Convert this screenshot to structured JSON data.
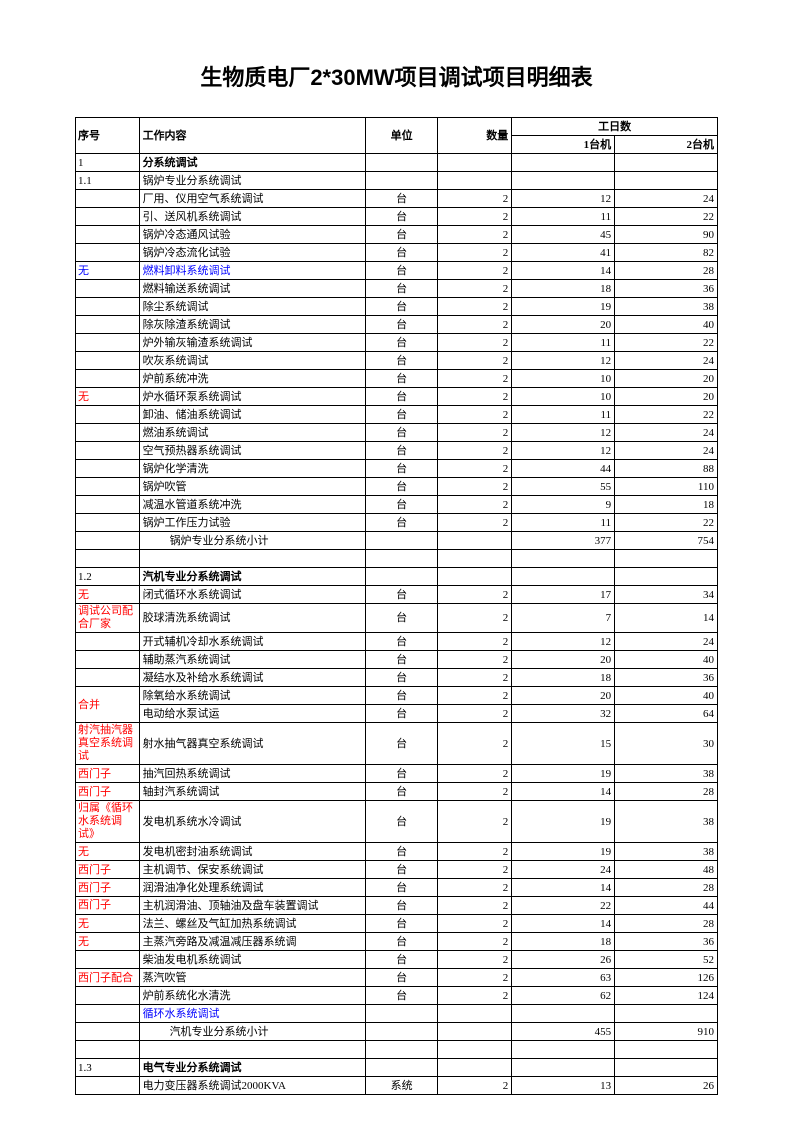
{
  "title": "生物质电厂2*30MW项目调试项目明细表",
  "headers": {
    "seq": "序号",
    "content": "工作内容",
    "unit": "单位",
    "qty": "数量",
    "days": "工日数",
    "d1": "1台机",
    "d2": "2台机"
  },
  "rows": [
    {
      "seq": "1",
      "content": "分系统调试",
      "bold": true
    },
    {
      "seq": "1.1",
      "content": "锅炉专业分系统调试"
    },
    {
      "seq": "",
      "content": "厂用、仪用空气系统调试",
      "unit": "台",
      "qty": "2",
      "d1": "12",
      "d2": "24"
    },
    {
      "seq": "",
      "content": "引、送风机系统调试",
      "unit": "台",
      "qty": "2",
      "d1": "11",
      "d2": "22"
    },
    {
      "seq": "",
      "content": "锅炉冷态通风试验",
      "unit": "台",
      "qty": "2",
      "d1": "45",
      "d2": "90"
    },
    {
      "seq": "",
      "content": "锅炉冷态流化试验",
      "unit": "台",
      "qty": "2",
      "d1": "41",
      "d2": "82"
    },
    {
      "seq": "无",
      "seqColor": "blue",
      "content": "燃料卸料系统调试",
      "contentColor": "blue",
      "unit": "台",
      "qty": "2",
      "d1": "14",
      "d2": "28"
    },
    {
      "seq": "",
      "content": "燃料输送系统调试",
      "unit": "台",
      "qty": "2",
      "d1": "18",
      "d2": "36"
    },
    {
      "seq": "",
      "content": "除尘系统调试",
      "unit": "台",
      "qty": "2",
      "d1": "19",
      "d2": "38"
    },
    {
      "seq": "",
      "content": "除灰除渣系统调试",
      "unit": "台",
      "qty": "2",
      "d1": "20",
      "d2": "40"
    },
    {
      "seq": "",
      "content": "炉外输灰输渣系统调试",
      "unit": "台",
      "qty": "2",
      "d1": "11",
      "d2": "22"
    },
    {
      "seq": "",
      "content": "吹灰系统调试",
      "unit": "台",
      "qty": "2",
      "d1": "12",
      "d2": "24"
    },
    {
      "seq": "",
      "content": "炉前系统冲洗",
      "unit": "台",
      "qty": "2",
      "d1": "10",
      "d2": "20"
    },
    {
      "seq": "无",
      "seqColor": "red",
      "content": "炉水循环泵系统调试",
      "unit": "台",
      "qty": "2",
      "d1": "10",
      "d2": "20"
    },
    {
      "seq": "",
      "content": "卸油、储油系统调试",
      "unit": "台",
      "qty": "2",
      "d1": "11",
      "d2": "22"
    },
    {
      "seq": "",
      "content": "燃油系统调试",
      "unit": "台",
      "qty": "2",
      "d1": "12",
      "d2": "24"
    },
    {
      "seq": "",
      "content": "空气预热器系统调试",
      "unit": "台",
      "qty": "2",
      "d1": "12",
      "d2": "24"
    },
    {
      "seq": "",
      "content": "锅炉化学清洗",
      "unit": "台",
      "qty": "2",
      "d1": "44",
      "d2": "88"
    },
    {
      "seq": "",
      "content": "锅炉吹管",
      "unit": "台",
      "qty": "2",
      "d1": "55",
      "d2": "110"
    },
    {
      "seq": "",
      "content": "减温水管道系统冲洗",
      "unit": "台",
      "qty": "2",
      "d1": "9",
      "d2": "18"
    },
    {
      "seq": "",
      "content": "锅炉工作压力试验",
      "unit": "台",
      "qty": "2",
      "d1": "11",
      "d2": "22"
    },
    {
      "seq": "",
      "content": "锅炉专业分系统小计",
      "indent": true,
      "d1": "377",
      "d2": "754"
    },
    {
      "blank": true
    },
    {
      "seq": "1.2",
      "content": "汽机专业分系统调试",
      "bold": true
    },
    {
      "seq": "无",
      "seqColor": "red",
      "content": "闭式循环水系统调试",
      "unit": "台",
      "qty": "2",
      "d1": "17",
      "d2": "34"
    },
    {
      "seq": "调试公司配合厂家",
      "seqColor": "red",
      "multiline": true,
      "content": "胶球清洗系统调试",
      "unit": "台",
      "qty": "2",
      "d1": "7",
      "d2": "14"
    },
    {
      "seq": "",
      "content": "开式辅机冷却水系统调试",
      "unit": "台",
      "qty": "2",
      "d1": "12",
      "d2": "24"
    },
    {
      "seq": "",
      "content": "辅助蒸汽系统调试",
      "unit": "台",
      "qty": "2",
      "d1": "20",
      "d2": "40"
    },
    {
      "seq": "",
      "content": "凝结水及补给水系统调试",
      "unit": "台",
      "qty": "2",
      "d1": "18",
      "d2": "36"
    },
    {
      "seq": "合并",
      "seqColor": "red",
      "seqCenter": true,
      "rowspan": 2,
      "content": "除氧给水系统调试",
      "unit": "台",
      "qty": "2",
      "d1": "20",
      "d2": "40"
    },
    {
      "skipSeq": true,
      "content": "电动给水泵试运",
      "unit": "台",
      "qty": "2",
      "d1": "32",
      "d2": "64"
    },
    {
      "seq": "射汽抽汽器真空系统调试",
      "seqColor": "red",
      "multiline": true,
      "content": "射水抽气器真空系统调试",
      "unit": "台",
      "qty": "2",
      "d1": "15",
      "d2": "30"
    },
    {
      "seq": "西门子",
      "seqColor": "red",
      "content": "抽汽回热系统调试",
      "unit": "台",
      "qty": "2",
      "d1": "19",
      "d2": "38"
    },
    {
      "seq": "西门子",
      "seqColor": "red",
      "content": "轴封汽系统调试",
      "unit": "台",
      "qty": "2",
      "d1": "14",
      "d2": "28"
    },
    {
      "seq": "归属《循环水系统调试》",
      "seqColor": "red",
      "multiline": true,
      "content": "发电机系统水冷调试",
      "unit": "台",
      "qty": "2",
      "d1": "19",
      "d2": "38"
    },
    {
      "seq": "无",
      "seqColor": "red",
      "content": "发电机密封油系统调试",
      "unit": "台",
      "qty": "2",
      "d1": "19",
      "d2": "38"
    },
    {
      "seq": "西门子",
      "seqColor": "red",
      "content": "主机调节、保安系统调试",
      "unit": "台",
      "qty": "2",
      "d1": "24",
      "d2": "48"
    },
    {
      "seq": "西门子",
      "seqColor": "red",
      "content": "润滑油净化处理系统调试",
      "unit": "台",
      "qty": "2",
      "d1": "14",
      "d2": "28"
    },
    {
      "seq": "西门子",
      "seqColor": "red",
      "multiline": true,
      "content": "主机润滑油、顶轴油及盘车装置调试",
      "unit": "台",
      "qty": "2",
      "d1": "22",
      "d2": "44"
    },
    {
      "seq": "无",
      "seqColor": "red",
      "content": "法兰、螺丝及气缸加热系统调试",
      "unit": "台",
      "qty": "2",
      "d1": "14",
      "d2": "28"
    },
    {
      "seq": "无",
      "seqColor": "red",
      "content": "主蒸汽旁路及减温减压器系统调",
      "unit": "台",
      "qty": "2",
      "d1": "18",
      "d2": "36"
    },
    {
      "seq": "",
      "content": "柴油发电机系统调试",
      "unit": "台",
      "qty": "2",
      "d1": "26",
      "d2": "52"
    },
    {
      "seq": "西门子配合",
      "seqColor": "red",
      "content": "蒸汽吹管",
      "unit": "台",
      "qty": "2",
      "d1": "63",
      "d2": "126"
    },
    {
      "seq": "",
      "content": "炉前系统化水清洗",
      "unit": "台",
      "qty": "2",
      "d1": "62",
      "d2": "124"
    },
    {
      "seq": "",
      "content": "循环水系统调试",
      "contentColor": "blue"
    },
    {
      "seq": "",
      "content": "汽机专业分系统小计",
      "indent": true,
      "d1": "455",
      "d2": "910"
    },
    {
      "blank": true
    },
    {
      "seq": "1.3",
      "content": "电气专业分系统调试",
      "bold": true
    },
    {
      "seq": "",
      "content": "电力变压器系统调试2000KVA",
      "unit": "系统",
      "qty": "2",
      "d1": "13",
      "d2": "26"
    }
  ]
}
